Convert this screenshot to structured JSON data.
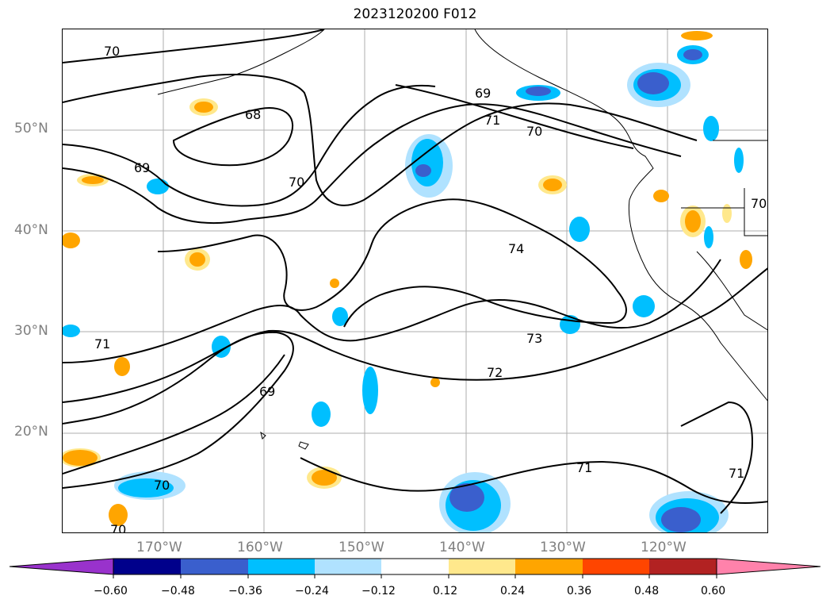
{
  "title": "2023120200 F012",
  "map": {
    "latitude_labels": [
      "50°N",
      "40°N",
      "30°N",
      "20°N"
    ],
    "longitude_labels": [
      "170°W",
      "160°W",
      "150°W",
      "140°W",
      "130°W",
      "120°W"
    ],
    "contour_labels": [
      "70",
      "68",
      "69",
      "70",
      "69",
      "71",
      "70",
      "74",
      "73",
      "72",
      "71",
      "69",
      "70",
      "71",
      "70",
      "71",
      "70"
    ],
    "colors": {
      "contour": "#000000",
      "coastline": "#000000",
      "gridline": "#999999"
    }
  },
  "colorbar": {
    "ticks": [
      "−0.60",
      "−0.48",
      "−0.36",
      "−0.24",
      "−0.12",
      "0.12",
      "0.24",
      "0.36",
      "0.48",
      "0.60"
    ],
    "colors": [
      "#9932cc",
      "#00008b",
      "#3a5fcd",
      "#00bfff",
      "#b0e2ff",
      "#ffffff",
      "#ffe88c",
      "#ffa500",
      "#ff4500",
      "#b22222",
      "#ff82ab"
    ]
  }
}
